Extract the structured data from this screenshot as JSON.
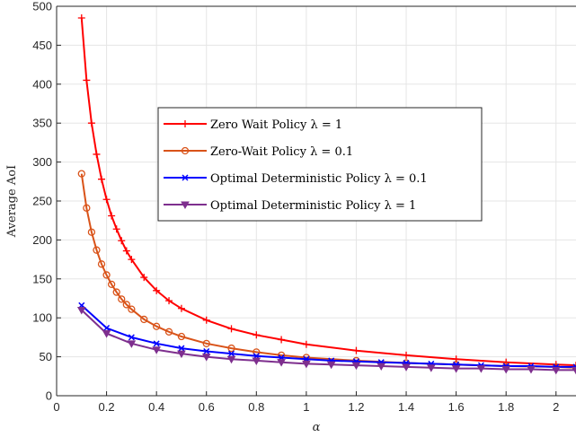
{
  "chart_data": {
    "type": "line",
    "title": "",
    "xlabel": "α",
    "ylabel": "Average AoI",
    "xlim": [
      0,
      2.08
    ],
    "ylim": [
      0,
      500
    ],
    "xticks": [
      "0",
      "0.2",
      "0.4",
      "0.6",
      "0.8",
      "1",
      "1.2",
      "1.4",
      "1.6",
      "1.8",
      "2"
    ],
    "yticks": [
      "0",
      "50",
      "100",
      "150",
      "200",
      "250",
      "300",
      "350",
      "400",
      "450",
      "500"
    ],
    "grid": true,
    "legend_position": "center",
    "series": [
      {
        "name": "Zero Wait Policy λ = 1",
        "color": "#ff0000",
        "marker": "plus",
        "x": [
          0.1,
          0.12,
          0.14,
          0.16,
          0.18,
          0.2,
          0.22,
          0.24,
          0.26,
          0.28,
          0.3,
          0.35,
          0.4,
          0.45,
          0.5,
          0.6,
          0.7,
          0.8,
          0.9,
          1.0,
          1.2,
          1.4,
          1.6,
          1.8,
          2.0,
          2.08
        ],
        "y": [
          485,
          405,
          350,
          310,
          278,
          252,
          231,
          214,
          199,
          186,
          175,
          152,
          135,
          122,
          112,
          97,
          86,
          78,
          72,
          66,
          58,
          52,
          47,
          43,
          40,
          39
        ]
      },
      {
        "name": "Zero-Wait Policy λ = 0.1",
        "color": "#d95319",
        "marker": "circle",
        "x": [
          0.1,
          0.12,
          0.14,
          0.16,
          0.18,
          0.2,
          0.22,
          0.24,
          0.26,
          0.28,
          0.3,
          0.35,
          0.4,
          0.45,
          0.5,
          0.6,
          0.7,
          0.8,
          0.9,
          1.0,
          1.2,
          1.4,
          1.6,
          1.8,
          2.0,
          2.08
        ],
        "y": [
          285,
          241,
          210,
          187,
          169,
          155,
          143,
          133,
          124,
          117,
          111,
          98,
          89,
          82,
          76,
          67,
          61,
          56,
          52,
          49,
          45,
          42,
          40,
          38,
          37,
          36
        ]
      },
      {
        "name": "Optimal Deterministic Policy λ = 0.1",
        "color": "#0000ff",
        "marker": "x",
        "x": [
          0.1,
          0.2,
          0.3,
          0.4,
          0.5,
          0.6,
          0.7,
          0.8,
          0.9,
          1.0,
          1.1,
          1.2,
          1.3,
          1.4,
          1.5,
          1.6,
          1.7,
          1.8,
          1.9,
          2.0,
          2.08
        ],
        "y": [
          116,
          87,
          75,
          67,
          61,
          57,
          54,
          51,
          49,
          47,
          45,
          44,
          43,
          42,
          41,
          40,
          39,
          38,
          38,
          37,
          37
        ]
      },
      {
        "name": "Optimal Deterministic Policy λ = 1",
        "color": "#7e2f8e",
        "marker": "triangle-down",
        "x": [
          0.1,
          0.2,
          0.3,
          0.4,
          0.5,
          0.6,
          0.7,
          0.8,
          0.9,
          1.0,
          1.1,
          1.2,
          1.3,
          1.4,
          1.5,
          1.6,
          1.7,
          1.8,
          1.9,
          2.0,
          2.08
        ],
        "y": [
          110,
          80,
          67,
          59,
          54,
          50,
          47,
          45,
          43,
          41,
          40,
          39,
          38,
          37,
          36,
          35,
          35,
          34,
          34,
          33,
          33
        ]
      }
    ]
  }
}
